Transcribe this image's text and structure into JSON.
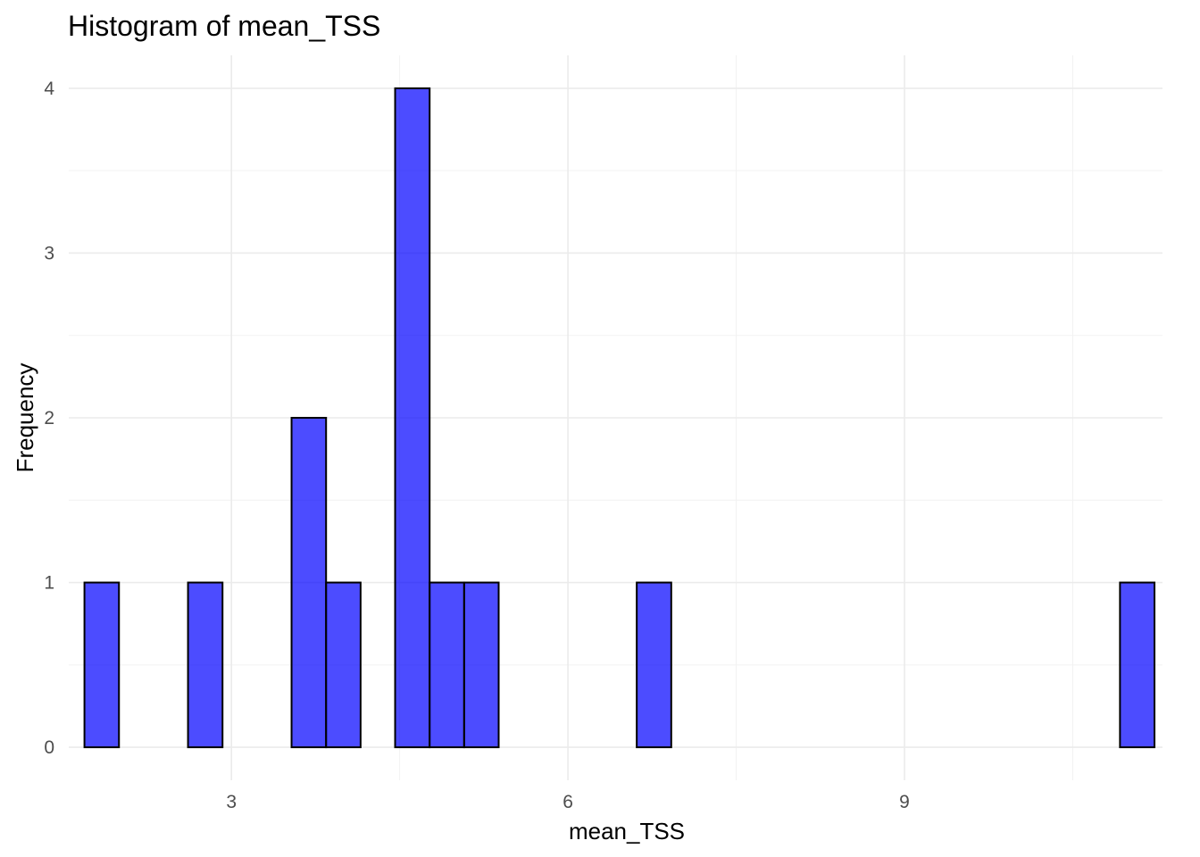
{
  "chart_data": {
    "type": "bar",
    "title": "Histogram of mean_TSS",
    "xlabel": "mean_TSS",
    "ylabel": "Frequency",
    "xlim": [
      1.55,
      11.3
    ],
    "ylim": [
      -0.2,
      4.2
    ],
    "x_ticks": [
      3,
      6,
      9
    ],
    "y_ticks": [
      0,
      1,
      2,
      3,
      4
    ],
    "bin_width": 0.3077,
    "bin_start": 1.69,
    "counts": [
      1,
      0,
      0,
      1,
      0,
      0,
      2,
      1,
      0,
      4,
      1,
      1,
      0,
      0,
      0,
      0,
      1,
      0,
      0,
      0,
      0,
      0,
      0,
      0,
      0,
      0,
      0,
      0,
      0,
      0,
      1
    ],
    "bar_color": "#0000ff",
    "bar_opacity": 0.7,
    "bar_outline": "#000000",
    "grid": true
  }
}
